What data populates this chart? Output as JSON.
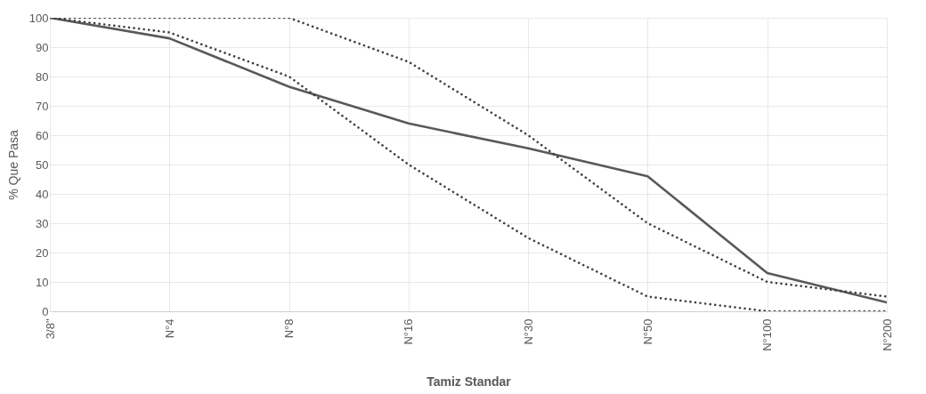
{
  "chart_data": {
    "type": "line",
    "xlabel": "Tamiz Standar",
    "ylabel": "% Que Pasa",
    "categories": [
      "3/8\"",
      "N°4",
      "N°8",
      "N°16",
      "N°30",
      "N°50",
      "N°100",
      "N°200"
    ],
    "series": [
      {
        "color": "#595959",
        "line_style": "solid",
        "values": [
          100,
          93,
          76.5,
          64,
          55.5,
          46,
          13,
          3
        ]
      },
      {
        "color": "#404040",
        "line_style": "dotted",
        "values": [
          100,
          100,
          100,
          85,
          60,
          30,
          10,
          5
        ]
      },
      {
        "color": "#404040",
        "line_style": "dotted",
        "values": [
          100,
          95,
          80,
          50,
          25,
          5,
          0,
          0
        ]
      }
    ],
    "ylim": [
      0,
      100
    ],
    "yticks": [
      0,
      10,
      20,
      30,
      40,
      50,
      60,
      70,
      80,
      90,
      100
    ],
    "grid": true,
    "marker": "none"
  }
}
